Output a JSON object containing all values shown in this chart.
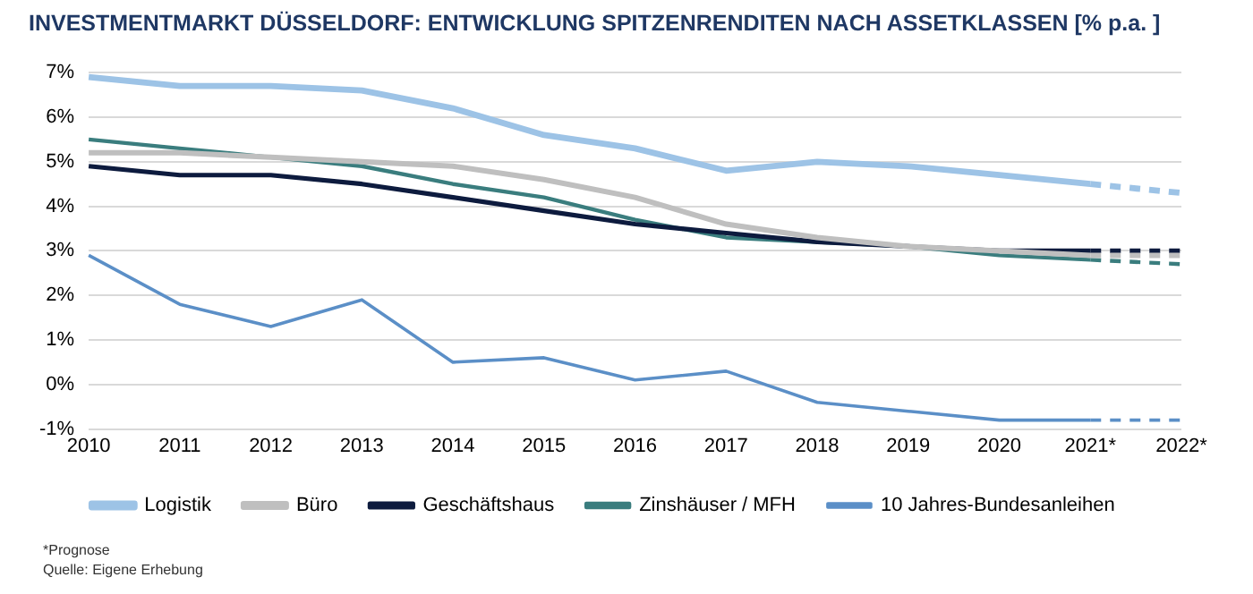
{
  "chart_data": {
    "type": "line",
    "title": "INVESTMENTMARKT DÜSSELDORF: ENTWICKLUNG SPITZENRENDITEN NACH ASSETKLASSEN [% p.a. ]",
    "categories": [
      "2010",
      "2011",
      "2012",
      "2013",
      "2014",
      "2015",
      "2016",
      "2017",
      "2018",
      "2019",
      "2020",
      "2021*",
      "2022*"
    ],
    "series": [
      {
        "name": "Logistik",
        "color": "#9dc3e6",
        "values": [
          6.9,
          6.7,
          6.7,
          6.6,
          6.2,
          5.6,
          5.3,
          4.8,
          5.0,
          4.9,
          4.7,
          4.5,
          null
        ]
      },
      {
        "name": "Büro",
        "color": "#bfbfbf",
        "values": [
          5.2,
          5.2,
          5.1,
          5.0,
          4.9,
          4.6,
          4.2,
          3.6,
          3.3,
          3.1,
          3.0,
          2.9,
          null
        ]
      },
      {
        "name": "Geschäftshaus",
        "color": "#0d1b3e",
        "values": [
          4.9,
          4.7,
          4.7,
          4.5,
          4.2,
          3.9,
          3.6,
          3.4,
          3.2,
          3.1,
          3.0,
          3.0,
          null
        ]
      },
      {
        "name": "Zinshäuser / MFH",
        "color": "#3a7d7e",
        "values": [
          5.5,
          5.3,
          5.1,
          4.9,
          4.5,
          4.2,
          3.7,
          3.3,
          3.2,
          3.1,
          2.9,
          2.8,
          null
        ]
      },
      {
        "name": "10 Jahres-Bundesanleihen",
        "color": "#5b8fc7",
        "values": [
          2.9,
          1.8,
          1.3,
          1.9,
          0.5,
          0.6,
          0.1,
          0.3,
          -0.4,
          -0.6,
          -0.8,
          -0.8,
          null
        ]
      },
      {
        "color": "#9dc3e6",
        "line_style": "dashed",
        "values": [
          null,
          null,
          null,
          null,
          null,
          null,
          null,
          null,
          null,
          null,
          null,
          4.5,
          4.3
        ]
      },
      {
        "color": "#bfbfbf",
        "line_style": "dashed",
        "values": [
          null,
          null,
          null,
          null,
          null,
          null,
          null,
          null,
          null,
          null,
          null,
          2.9,
          2.9
        ]
      },
      {
        "color": "#0d1b3e",
        "line_style": "dashed",
        "values": [
          null,
          null,
          null,
          null,
          null,
          null,
          null,
          null,
          null,
          null,
          null,
          3.0,
          3.0
        ]
      },
      {
        "color": "#3a7d7e",
        "line_style": "dashed",
        "values": [
          null,
          null,
          null,
          null,
          null,
          null,
          null,
          null,
          null,
          null,
          null,
          2.8,
          2.7
        ]
      },
      {
        "color": "#5b8fc7",
        "line_style": "dashed",
        "values": [
          null,
          null,
          null,
          null,
          null,
          null,
          null,
          null,
          null,
          null,
          null,
          -0.8,
          -0.8
        ]
      }
    ],
    "ylim": [
      -1,
      7
    ],
    "yticks": [
      {
        "value": -1,
        "label": "-1%"
      },
      {
        "value": 0,
        "label": "0%"
      },
      {
        "value": 1,
        "label": "1%"
      },
      {
        "value": 2,
        "label": "2%"
      },
      {
        "value": 3,
        "label": "3%"
      },
      {
        "value": 4,
        "label": "4%"
      },
      {
        "value": 5,
        "label": "5%"
      },
      {
        "value": 6,
        "label": "6%"
      },
      {
        "value": 7,
        "label": "7%"
      }
    ],
    "grid": "y",
    "legend": "bottom",
    "marker": "none",
    "line_style": "solid",
    "annotations": [
      "*Prognose",
      "Quelle: Eigene Erhebung"
    ]
  }
}
